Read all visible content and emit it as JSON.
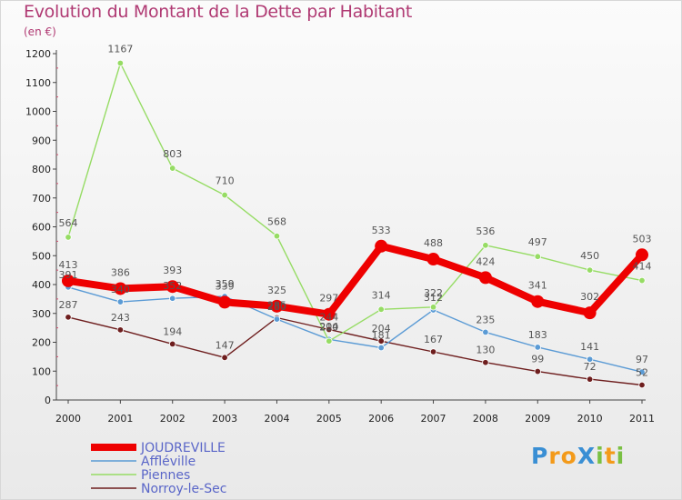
{
  "header": {
    "title": "Evolution du Montant de la Dette par Habitant",
    "unit": "(en €)"
  },
  "logo": {
    "text": "ProXiti",
    "letters": [
      {
        "ch": "P",
        "color": "#3a8fd4"
      },
      {
        "ch": "r",
        "color": "#f39a1a"
      },
      {
        "ch": "o",
        "color": "#f39a1a"
      },
      {
        "ch": "X",
        "color": "#3a8fd4"
      },
      {
        "ch": "i",
        "color": "#7ac043"
      },
      {
        "ch": "t",
        "color": "#f39a1a"
      },
      {
        "ch": "i",
        "color": "#7ac043"
      }
    ]
  },
  "chart_data": {
    "type": "line",
    "title": "Evolution du Montant de la Dette par Habitant",
    "ylabel": "(en €)",
    "xlabel": "",
    "x": [
      "2000",
      "2001",
      "2002",
      "2003",
      "2004",
      "2005",
      "2006",
      "2007",
      "2008",
      "2009",
      "2010",
      "2011"
    ],
    "ylim": [
      0,
      1200
    ],
    "yticks": [
      0,
      100,
      200,
      300,
      400,
      500,
      600,
      700,
      800,
      900,
      1000,
      1100,
      1200
    ],
    "grid": false,
    "legend_position": "bottom-left",
    "series": [
      {
        "name": "JOUDREVILLE",
        "color": "#ee0000",
        "emphasis": true,
        "values": [
          413,
          386,
          393,
          339,
          325,
          297,
          533,
          488,
          424,
          341,
          302,
          503
        ]
      },
      {
        "name": "Affléville",
        "color": "#5b9bd5",
        "emphasis": false,
        "values": [
          391,
          340,
          352,
          359,
          280,
          210,
          181,
          312,
          235,
          183,
          141,
          97
        ]
      },
      {
        "name": "Piennes",
        "color": "#96dc64",
        "emphasis": false,
        "values": [
          564,
          1167,
          803,
          710,
          568,
          204,
          314,
          322,
          536,
          497,
          450,
          414
        ]
      },
      {
        "name": "Norroy-le-Sec",
        "color": "#6e1e1e",
        "emphasis": false,
        "values": [
          287,
          243,
          194,
          147,
          285,
          244,
          204,
          167,
          130,
          99,
          72,
          52
        ]
      }
    ]
  }
}
